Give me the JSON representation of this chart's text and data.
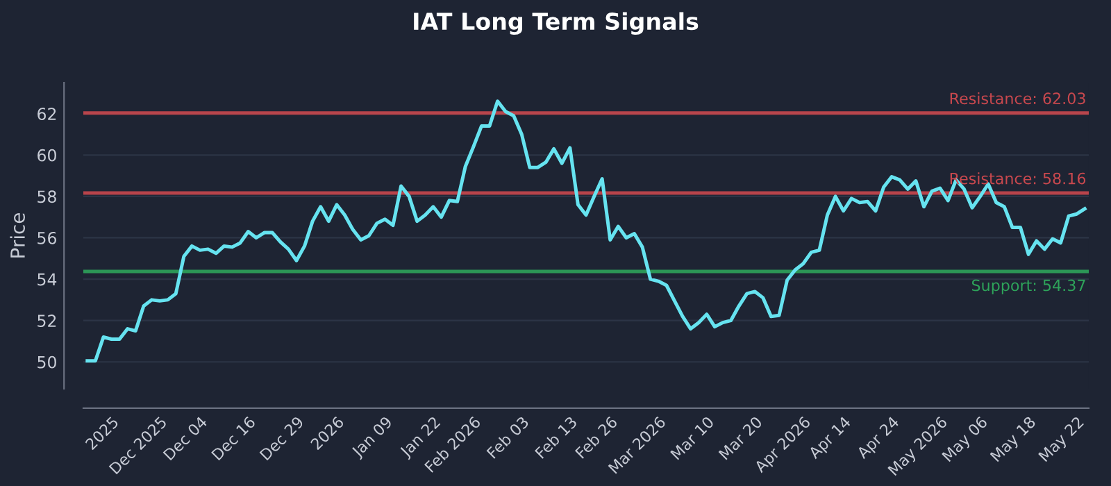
{
  "chart_data": {
    "type": "line",
    "title": "IAT Long Term Signals",
    "ylabel": "Price",
    "categories": [
      null,
      null,
      null,
      "2025",
      null,
      null,
      null,
      null,
      null,
      "Dec 2025",
      null,
      null,
      null,
      null,
      "Dec 04",
      null,
      null,
      null,
      null,
      null,
      "Dec 16",
      null,
      null,
      null,
      null,
      null,
      "Dec 29",
      null,
      null,
      null,
      null,
      "2026",
      null,
      null,
      null,
      null,
      null,
      "Jan 09",
      null,
      null,
      null,
      null,
      null,
      "Jan 22",
      null,
      null,
      null,
      null,
      "Feb 2026",
      null,
      null,
      null,
      null,
      null,
      "Feb 03",
      null,
      null,
      null,
      null,
      null,
      "Feb 13",
      null,
      null,
      null,
      null,
      "Feb 26",
      null,
      null,
      null,
      null,
      null,
      "Mar 2026",
      null,
      null,
      null,
      null,
      null,
      "Mar 10",
      null,
      null,
      null,
      null,
      null,
      "Mar 20",
      null,
      null,
      null,
      null,
      null,
      "Apr 2026",
      null,
      null,
      null,
      null,
      "Apr 14",
      null,
      null,
      null,
      null,
      null,
      "Apr 24",
      null,
      null,
      null,
      null,
      null,
      "May 2026",
      null,
      null,
      null,
      null,
      "May 06",
      null,
      null,
      null,
      null,
      null,
      "May 18",
      null,
      null,
      null,
      null,
      null,
      "May 22",
      null
    ],
    "series": [
      {
        "color": "#66e3f0",
        "values": [
          50.05,
          50.05,
          51.2,
          51.1,
          51.1,
          51.6,
          51.5,
          52.7,
          53.0,
          52.95,
          53.0,
          53.3,
          55.1,
          55.6,
          55.4,
          55.45,
          55.25,
          55.6,
          55.55,
          55.75,
          56.3,
          56.0,
          56.25,
          56.25,
          55.8,
          55.45,
          54.9,
          55.6,
          56.8,
          57.5,
          56.8,
          57.6,
          57.1,
          56.4,
          55.9,
          56.1,
          56.7,
          56.9,
          56.6,
          58.5,
          58.0,
          56.8,
          57.1,
          57.5,
          57.0,
          57.8,
          57.75,
          59.45,
          60.4,
          61.4,
          61.4,
          62.6,
          62.1,
          61.9,
          61.0,
          59.4,
          59.4,
          59.65,
          60.3,
          59.6,
          60.35,
          57.6,
          57.1,
          58.0,
          58.85,
          55.9,
          56.55,
          56.0,
          56.2,
          55.55,
          54.0,
          53.9,
          53.7,
          52.95,
          52.2,
          51.6,
          51.9,
          52.3,
          51.7,
          51.9,
          52.0,
          52.7,
          53.3,
          53.4,
          53.1,
          52.2,
          52.25,
          53.95,
          54.45,
          54.75,
          55.3,
          55.4,
          57.1,
          58.0,
          57.3,
          57.9,
          57.7,
          57.75,
          57.3,
          58.45,
          58.95,
          58.8,
          58.35,
          58.75,
          57.5,
          58.25,
          58.4,
          57.8,
          58.8,
          58.35,
          57.45,
          58.0,
          58.6,
          57.7,
          57.5,
          56.5,
          56.5,
          55.2,
          55.85,
          55.45,
          55.95,
          55.75,
          57.05,
          57.15,
          57.4
        ]
      }
    ],
    "ylim": [
      48.7,
      63.5
    ],
    "yticks": [
      50,
      52,
      54,
      56,
      58,
      60,
      62
    ],
    "grid": "y",
    "ref_lines": [
      {
        "axis": "y",
        "value": 62.03,
        "label": "Resistance: 62.03",
        "color": "#c9484e"
      },
      {
        "axis": "y",
        "value": 58.16,
        "label": "Resistance: 58.16",
        "color": "#c9484e"
      },
      {
        "axis": "y",
        "value": 54.37,
        "label": "Support: 54.37",
        "color": "#2ea35a"
      }
    ]
  }
}
